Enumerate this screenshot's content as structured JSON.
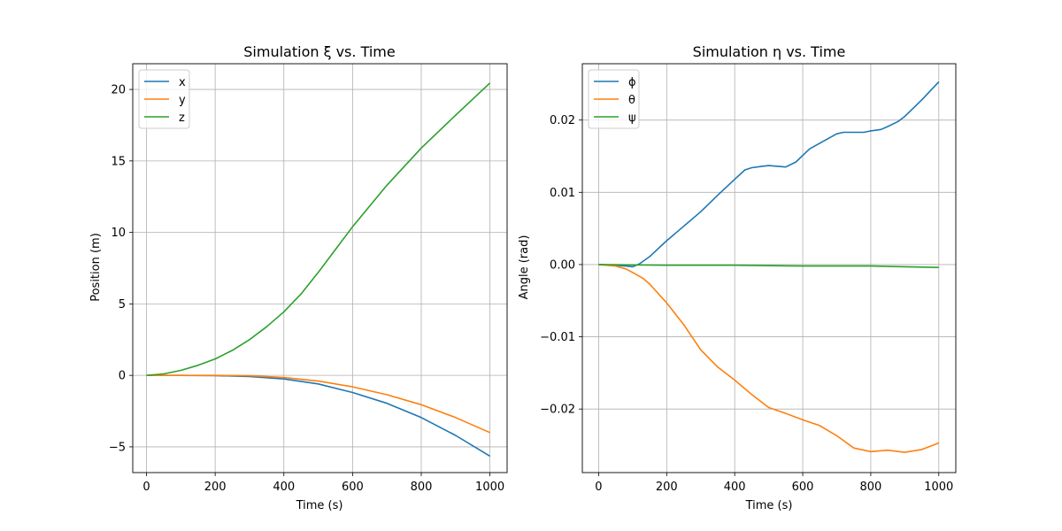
{
  "chart_data": [
    {
      "type": "line",
      "title": "Simulation ξ vs. Time",
      "xlabel": "Time (s)",
      "ylabel": "Position (m)",
      "xlim": [
        -40,
        1050
      ],
      "ylim": [
        -6.8,
        21.8
      ],
      "xticks": [
        0,
        200,
        400,
        600,
        800,
        1000
      ],
      "yticks": [
        -5,
        0,
        5,
        10,
        15,
        20
      ],
      "xtick_labels": [
        "0",
        "200",
        "400",
        "600",
        "800",
        "1000"
      ],
      "ytick_labels": [
        "−5",
        "0",
        "5",
        "10",
        "15",
        "20"
      ],
      "grid": true,
      "legend": "top-left",
      "series": [
        {
          "name": "x",
          "color": "#1f77b4",
          "x": [
            0,
            100,
            200,
            300,
            400,
            500,
            600,
            700,
            800,
            900,
            1000
          ],
          "y": [
            0,
            -0.005,
            -0.02,
            -0.08,
            -0.25,
            -0.6,
            -1.2,
            -1.95,
            -2.95,
            -4.2,
            -5.65
          ]
        },
        {
          "name": "y",
          "color": "#ff7f0e",
          "x": [
            0,
            100,
            200,
            300,
            400,
            500,
            600,
            700,
            800,
            900,
            1000
          ],
          "y": [
            0,
            0,
            0,
            -0.03,
            -0.15,
            -0.4,
            -0.8,
            -1.35,
            -2.05,
            -2.95,
            -4.0
          ]
        },
        {
          "name": "z",
          "color": "#2ca02c",
          "x": [
            0,
            50,
            100,
            150,
            200,
            250,
            300,
            350,
            400,
            450,
            500,
            600,
            700,
            800,
            900,
            1000
          ],
          "y": [
            0,
            0.1,
            0.35,
            0.7,
            1.15,
            1.75,
            2.5,
            3.4,
            4.45,
            5.7,
            7.2,
            10.4,
            13.3,
            15.9,
            18.2,
            20.45
          ]
        }
      ]
    },
    {
      "type": "line",
      "title": "Simulation η vs. Time",
      "xlabel": "Time (s)",
      "ylabel": "Angle (rad)",
      "xlim": [
        -48,
        1050
      ],
      "ylim": [
        -0.0288,
        0.0278
      ],
      "xticks": [
        0,
        200,
        400,
        600,
        800,
        1000
      ],
      "yticks": [
        -0.02,
        -0.01,
        0.0,
        0.01,
        0.02
      ],
      "xtick_labels": [
        "0",
        "200",
        "400",
        "600",
        "800",
        "1000"
      ],
      "ytick_labels": [
        "−0.02",
        "−0.01",
        "0.00",
        "0.01",
        "0.02"
      ],
      "grid": true,
      "legend": "top-left",
      "series": [
        {
          "name": "ϕ",
          "color": "#1f77b4",
          "x": [
            0,
            50,
            80,
            100,
            120,
            150,
            200,
            250,
            300,
            350,
            400,
            430,
            450,
            480,
            500,
            550,
            580,
            600,
            620,
            650,
            700,
            720,
            750,
            780,
            800,
            830,
            850,
            880,
            900,
            950,
            1000
          ],
          "y": [
            0,
            -0.0001,
            -0.0002,
            -0.0003,
            0.0001,
            0.0011,
            0.0033,
            0.0053,
            0.0073,
            0.0096,
            0.0118,
            0.0131,
            0.0134,
            0.0136,
            0.0137,
            0.0135,
            0.0142,
            0.0151,
            0.016,
            0.0168,
            0.0181,
            0.0183,
            0.0183,
            0.0183,
            0.0185,
            0.0187,
            0.0191,
            0.0198,
            0.0205,
            0.0228,
            0.0253
          ]
        },
        {
          "name": "θ",
          "color": "#ff7f0e",
          "x": [
            0,
            50,
            80,
            100,
            130,
            150,
            200,
            250,
            300,
            350,
            400,
            450,
            500,
            550,
            600,
            650,
            700,
            750,
            800,
            850,
            900,
            950,
            1000
          ],
          "y": [
            0,
            -0.0002,
            -0.0006,
            -0.0011,
            -0.0019,
            -0.0027,
            -0.0053,
            -0.0083,
            -0.0118,
            -0.0142,
            -0.016,
            -0.018,
            -0.0198,
            -0.0206,
            -0.0215,
            -0.0223,
            -0.0237,
            -0.0254,
            -0.0259,
            -0.0257,
            -0.026,
            -0.0256,
            -0.0247
          ]
        },
        {
          "name": "ψ",
          "color": "#2ca02c",
          "x": [
            0,
            200,
            400,
            600,
            800,
            1000
          ],
          "y": [
            0,
            -0.0001,
            -0.0001,
            -0.0002,
            -0.0002,
            -0.0004
          ]
        }
      ]
    }
  ]
}
